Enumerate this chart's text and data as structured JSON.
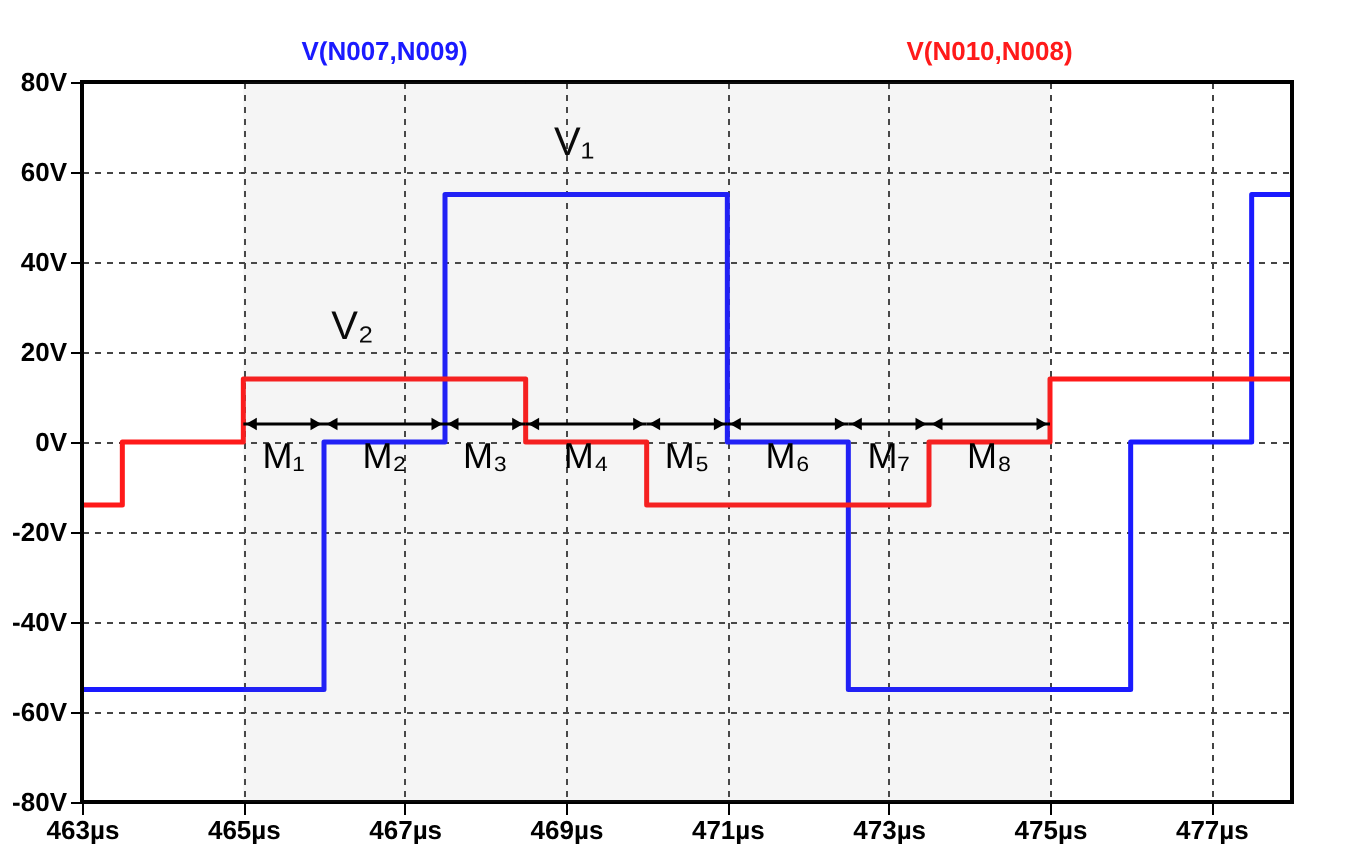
{
  "chart_data": {
    "type": "step",
    "legend": "top",
    "grid": true,
    "line_style": "solid",
    "marker": "none",
    "series": [
      {
        "name": "V(N007,N009)",
        "color": "#1a1aff",
        "x": [
          463,
          466,
          467.5,
          471,
          472.5,
          476,
          477.5,
          478
        ],
        "values": [
          -55,
          0,
          55,
          0,
          -55,
          0,
          55,
          55
        ]
      },
      {
        "name": "V(N010,N008)",
        "color": "#ff1a1a",
        "x": [
          463,
          463.5,
          465,
          468.5,
          470,
          473.5,
          475,
          478
        ],
        "values": [
          -14,
          0,
          14,
          0,
          -14,
          0,
          14,
          14
        ]
      }
    ],
    "xlim": [
      463,
      478
    ],
    "xticks": [
      {
        "value": 463,
        "label": "463µs"
      },
      {
        "value": 465,
        "label": "465µs"
      },
      {
        "value": 467,
        "label": "467µs"
      },
      {
        "value": 469,
        "label": "469µs"
      },
      {
        "value": 471,
        "label": "471µs"
      },
      {
        "value": 473,
        "label": "473µs"
      },
      {
        "value": 475,
        "label": "475µs"
      },
      {
        "value": 477,
        "label": "477µs"
      }
    ],
    "ylim": [
      -80,
      80
    ],
    "yticks": [
      {
        "value": -80,
        "label": "-80V"
      },
      {
        "value": -60,
        "label": "-60V"
      },
      {
        "value": -40,
        "label": "-40V"
      },
      {
        "value": -20,
        "label": "-20V"
      },
      {
        "value": 0,
        "label": "0V"
      },
      {
        "value": 20,
        "label": "20V"
      },
      {
        "value": 40,
        "label": "40V"
      },
      {
        "value": 60,
        "label": "60V"
      },
      {
        "value": 80,
        "label": "80V"
      }
    ],
    "annotations": [
      {
        "text": "V₁",
        "x": 469.25,
        "y": 55
      },
      {
        "text": "V₂",
        "x": 466.5,
        "y": 14
      }
    ],
    "bands": [
      {
        "axis": "x",
        "from": 465,
        "to": 466,
        "label": "M₁"
      },
      {
        "axis": "x",
        "from": 466,
        "to": 467.5,
        "label": "M₂"
      },
      {
        "axis": "x",
        "from": 467.5,
        "to": 468.5,
        "label": "M₃"
      },
      {
        "axis": "x",
        "from": 468.5,
        "to": 470,
        "label": "M₄"
      },
      {
        "axis": "x",
        "from": 470,
        "to": 471,
        "label": "M₅"
      },
      {
        "axis": "x",
        "from": 471,
        "to": 472.5,
        "label": "M₆"
      },
      {
        "axis": "x",
        "from": 472.5,
        "to": 473.5,
        "label": "M₇"
      },
      {
        "axis": "x",
        "from": 473.5,
        "to": 475,
        "label": "M₈"
      }
    ]
  }
}
